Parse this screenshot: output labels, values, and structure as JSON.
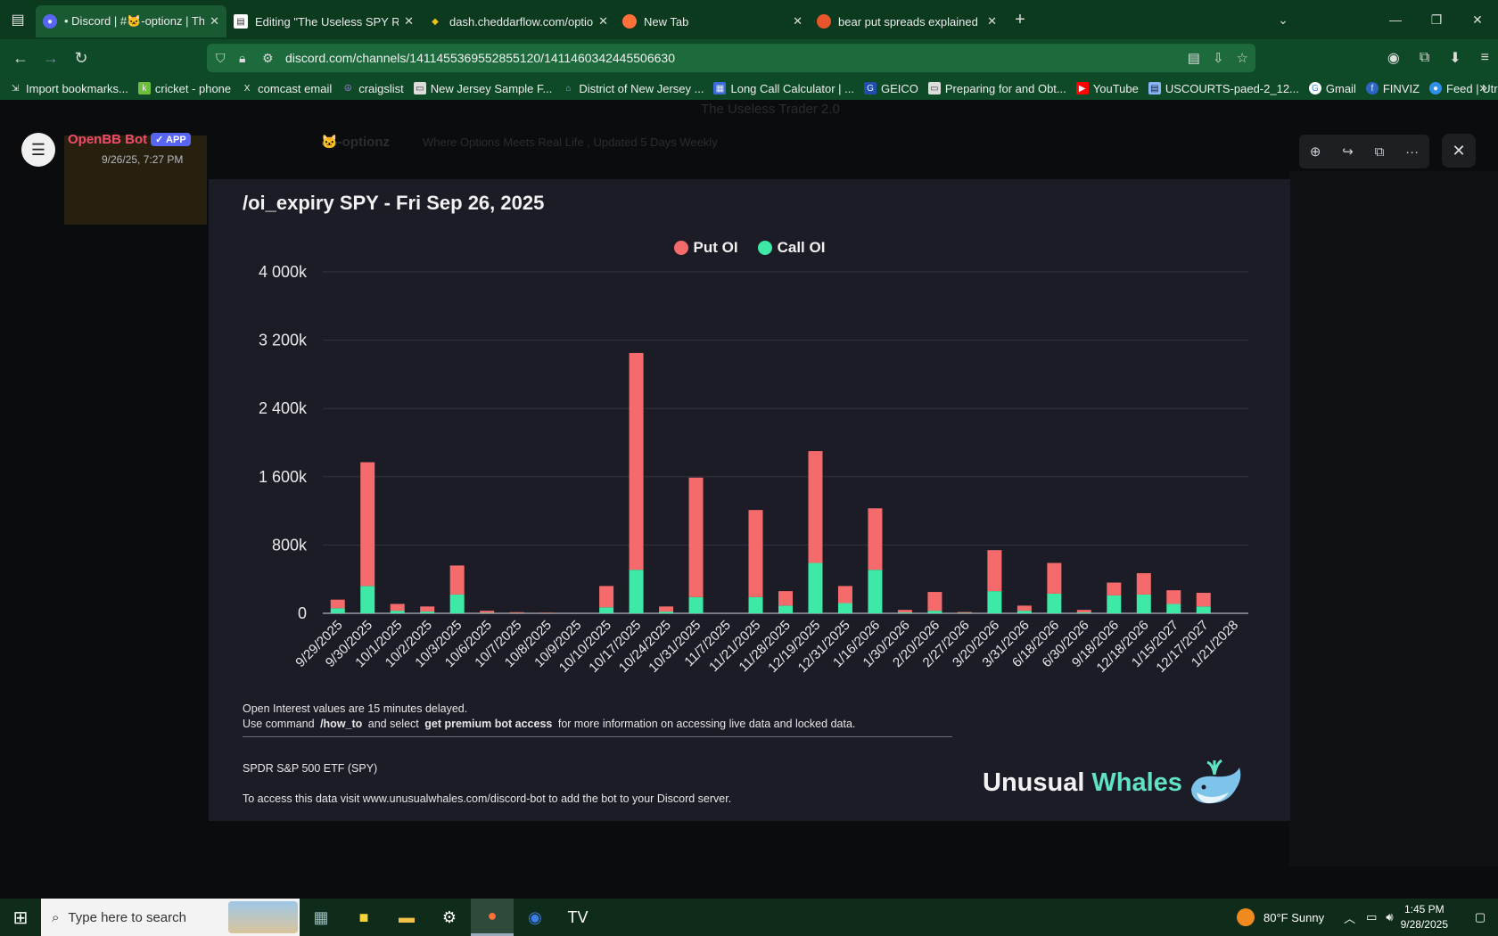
{
  "browser": {
    "tabs": [
      {
        "title": "• Discord | #🐱-optionz | The U",
        "active": true
      },
      {
        "title": "Editing \"The Useless SPY Report\"",
        "active": false
      },
      {
        "title": "dash.cheddarflow.com/options-",
        "active": false
      },
      {
        "title": "New Tab",
        "active": false
      },
      {
        "title": "bear put spreads explained at D",
        "active": false
      }
    ],
    "url": "discord.com/channels/1411455369552855120/1411460342445506630",
    "bookmarks": [
      "Import bookmarks...",
      "cricket - phone",
      "comcast email",
      "craigslist",
      "New Jersey Sample F...",
      "District of New Jersey ...",
      "Long Call Calculator | ...",
      "GEICO",
      "Preparing for and Obt...",
      "YouTube",
      "USCOURTS-paed-2_12...",
      "Gmail",
      "FINVIZ",
      "Feed | Utradea"
    ]
  },
  "background": {
    "server_title": "The Useless Trader 2.0",
    "channel": "🐱-optionz",
    "topic": "Where Options Meets Real Life , Updated 5 Days Weekly"
  },
  "modal": {
    "author": "OpenBB Bot",
    "app_badge": "✓ APP",
    "timestamp": "9/26/25, 7:27 PM"
  },
  "chart_image": {
    "title": "/oi_expiry SPY - Fri Sep 26, 2025",
    "footer_line1": "Open Interest values are 15 minutes delayed.",
    "footer_line2_pre": "Use command",
    "footer_line2_cmd": "/how_to",
    "footer_line2_mid": "and select",
    "footer_line2_bold": "get premium bot access",
    "footer_line2_post": "for more information on accessing live data and locked data.",
    "ticker_name": "SPDR S&P 500 ETF (SPY)",
    "access_text": "To access this data visit www.unusualwhales.com/discord-bot to add the bot to your Discord server.",
    "brand_left": "Unusual",
    "brand_right": "Whales"
  },
  "chart_data": {
    "type": "bar",
    "stacked": true,
    "title": "/oi_expiry SPY - Fri Sep 26, 2025",
    "legend": "top-center",
    "grid": true,
    "ylim": [
      0,
      4000
    ],
    "yticks": [
      "0",
      "800k",
      "1 600k",
      "2 400k",
      "3 200k",
      "4 000k"
    ],
    "ytick_values": [
      0,
      800,
      1600,
      2400,
      3200,
      4000
    ],
    "categories": [
      "9/29/2025",
      "9/30/2025",
      "10/1/2025",
      "10/2/2025",
      "10/3/2025",
      "10/6/2025",
      "10/7/2025",
      "10/8/2025",
      "10/9/2025",
      "10/10/2025",
      "10/17/2025",
      "10/24/2025",
      "10/31/2025",
      "11/7/2025",
      "11/21/2025",
      "11/28/2025",
      "12/19/2025",
      "12/31/2025",
      "1/16/2026",
      "1/30/2026",
      "2/20/2026",
      "2/27/2026",
      "3/20/2026",
      "3/31/2026",
      "6/18/2026",
      "6/30/2026",
      "9/18/2026",
      "12/18/2026",
      "1/15/2027",
      "12/17/2027",
      "1/21/2028"
    ],
    "series": [
      {
        "name": "Call OI",
        "color": "#3ee8a6",
        "values": [
          60,
          320,
          30,
          20,
          220,
          5,
          3,
          2,
          0,
          70,
          510,
          20,
          190,
          0,
          190,
          90,
          590,
          120,
          510,
          10,
          30,
          5,
          260,
          30,
          230,
          10,
          210,
          220,
          110,
          80,
          0
        ]
      },
      {
        "name": "Put OI",
        "color": "#f56b6b",
        "values": [
          100,
          1450,
          80,
          60,
          340,
          25,
          10,
          5,
          0,
          250,
          2540,
          60,
          1400,
          0,
          1020,
          170,
          1310,
          200,
          720,
          30,
          220,
          10,
          480,
          60,
          360,
          30,
          150,
          250,
          160,
          160,
          0
        ]
      }
    ]
  },
  "taskbar": {
    "search_placeholder": "Type here to search",
    "weather": "80°F  Sunny",
    "time": "1:45 PM",
    "date": "9/28/2025"
  }
}
